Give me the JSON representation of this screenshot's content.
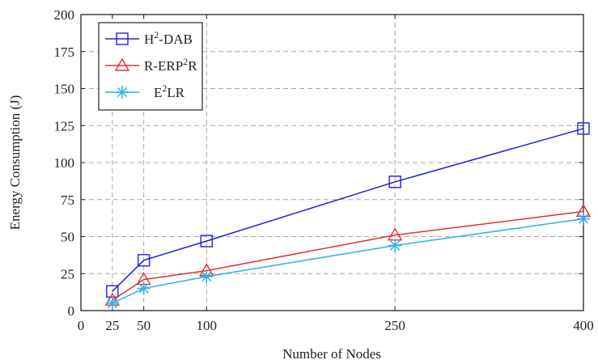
{
  "chart_data": {
    "type": "line",
    "title": "",
    "xlabel": "Number of Nodes",
    "ylabel": "Energy Consumption (J)",
    "x": [
      25,
      50,
      100,
      250,
      400
    ],
    "x_ticks": [
      0,
      25,
      50,
      100,
      250,
      400
    ],
    "y_ticks": [
      0,
      25,
      50,
      75,
      100,
      125,
      150,
      175,
      200
    ],
    "xlim": [
      0,
      400
    ],
    "ylim": [
      0,
      200
    ],
    "grid": true,
    "legend_position": "top-left",
    "series": [
      {
        "name_main": "H",
        "name_sup": "2",
        "name_rest": "-DAB",
        "values": [
          13,
          34,
          47,
          87,
          123
        ],
        "color": "#2020e0",
        "marker": "square"
      },
      {
        "name_main": "R-ERP",
        "name_sup": "2",
        "name_rest": "R",
        "values": [
          7,
          21,
          27,
          51,
          67
        ],
        "color": "#e03030",
        "marker": "triangle"
      },
      {
        "name_main": "E",
        "name_sup": "2",
        "name_rest": "LR",
        "values": [
          5,
          15,
          23,
          44,
          62
        ],
        "color": "#2ab0e8",
        "marker": "asterisk"
      }
    ]
  }
}
